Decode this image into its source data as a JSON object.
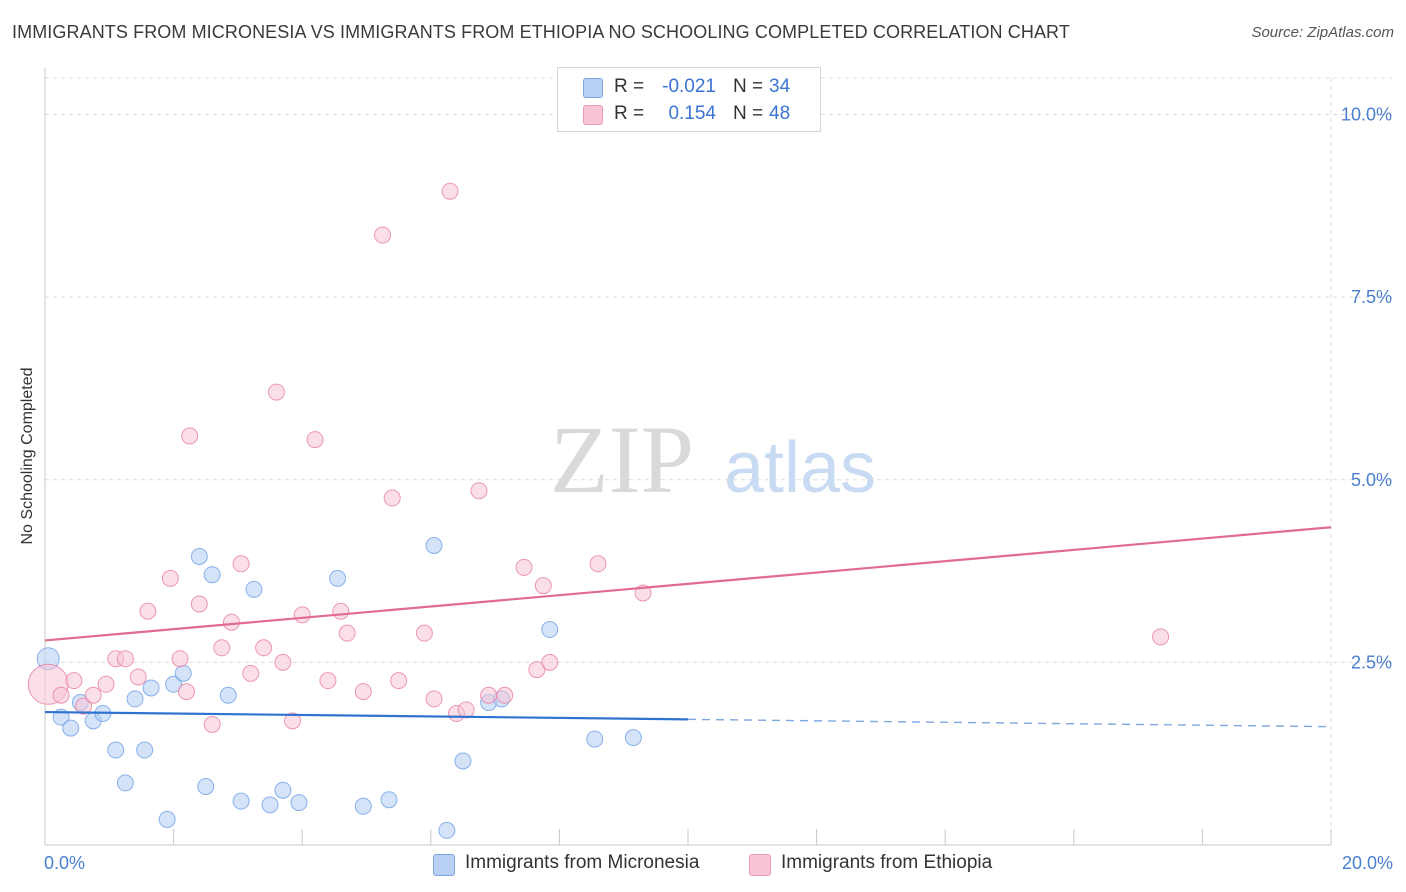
{
  "title": "IMMIGRANTS FROM MICRONESIA VS IMMIGRANTS FROM ETHIOPIA NO SCHOOLING COMPLETED CORRELATION CHART",
  "source": "Source: ZipAtlas.com",
  "watermark": {
    "zip": "ZIP",
    "atlas": "atlas"
  },
  "legend": {
    "rows": [
      {
        "r_label": "R =",
        "r_value": "-0.021",
        "n_label": "N =",
        "n_value": "34",
        "color": "#b8d0f4"
      },
      {
        "r_label": "R =",
        "r_value": "0.154",
        "n_label": "N =",
        "n_value": "48",
        "color": "#f8c5d6"
      }
    ]
  },
  "bottom_legend": [
    {
      "label": "Immigrants from Micronesia",
      "color": "#b8d0f4"
    },
    {
      "label": "Immigrants from Ethiopia",
      "color": "#f8c5d6"
    }
  ],
  "chart_data": {
    "type": "scatter",
    "title": "IMMIGRANTS FROM MICRONESIA VS IMMIGRANTS FROM ETHIOPIA NO SCHOOLING COMPLETED CORRELATION CHART",
    "xlabel": "",
    "ylabel": "No Schooling Completed",
    "xlim": [
      0,
      20
    ],
    "ylim": [
      0,
      10.5
    ],
    "x_tick_labels": [
      "0.0%",
      "20.0%"
    ],
    "y_ticks": [
      2.5,
      5.0,
      7.5,
      10.0
    ],
    "y_tick_labels": [
      "2.5%",
      "5.0%",
      "7.5%",
      "10.0%"
    ],
    "grid": true,
    "series": [
      {
        "name": "Immigrants from Micronesia",
        "color": "#6fa0e6",
        "fill": "#b8d0f4",
        "points": [
          [
            0.05,
            2.55
          ],
          [
            0.25,
            1.75
          ],
          [
            0.4,
            1.6
          ],
          [
            0.55,
            1.95
          ],
          [
            0.75,
            1.7
          ],
          [
            0.9,
            1.8
          ],
          [
            1.1,
            1.3
          ],
          [
            1.25,
            0.85
          ],
          [
            1.4,
            2.0
          ],
          [
            1.55,
            1.3
          ],
          [
            1.65,
            2.15
          ],
          [
            1.9,
            0.35
          ],
          [
            2.0,
            2.2
          ],
          [
            2.15,
            2.35
          ],
          [
            2.4,
            3.95
          ],
          [
            2.5,
            0.8
          ],
          [
            2.6,
            3.7
          ],
          [
            2.85,
            2.05
          ],
          [
            3.05,
            0.6
          ],
          [
            3.25,
            3.5
          ],
          [
            3.5,
            0.55
          ],
          [
            3.7,
            0.75
          ],
          [
            3.95,
            0.58
          ],
          [
            4.55,
            3.65
          ],
          [
            4.95,
            0.53
          ],
          [
            5.35,
            0.62
          ],
          [
            6.05,
            4.1
          ],
          [
            6.25,
            0.2
          ],
          [
            6.5,
            1.15
          ],
          [
            6.9,
            1.95
          ],
          [
            7.1,
            2.0
          ],
          [
            7.85,
            2.95
          ],
          [
            8.55,
            1.45
          ],
          [
            9.15,
            1.47
          ]
        ],
        "trend": {
          "x": [
            0,
            10
          ],
          "y": [
            1.82,
            1.72
          ],
          "dashed_to": [
            20,
            1.62
          ]
        }
      },
      {
        "name": "Immigrants from Ethiopia",
        "color": "#e87fa2",
        "fill": "#f8c5d6",
        "points": [
          [
            0.05,
            2.2
          ],
          [
            0.25,
            2.05
          ],
          [
            0.45,
            2.25
          ],
          [
            0.6,
            1.9
          ],
          [
            0.75,
            2.05
          ],
          [
            0.95,
            2.2
          ],
          [
            1.1,
            2.55
          ],
          [
            1.25,
            2.55
          ],
          [
            1.45,
            2.3
          ],
          [
            1.6,
            3.2
          ],
          [
            1.95,
            3.65
          ],
          [
            2.1,
            2.55
          ],
          [
            2.2,
            2.1
          ],
          [
            2.25,
            5.6
          ],
          [
            2.4,
            3.3
          ],
          [
            2.6,
            1.65
          ],
          [
            2.75,
            2.7
          ],
          [
            2.9,
            3.05
          ],
          [
            3.05,
            3.85
          ],
          [
            3.2,
            2.35
          ],
          [
            3.4,
            2.7
          ],
          [
            3.6,
            6.2
          ],
          [
            3.7,
            2.5
          ],
          [
            3.85,
            1.7
          ],
          [
            4.0,
            3.15
          ],
          [
            4.2,
            5.55
          ],
          [
            4.4,
            2.25
          ],
          [
            4.6,
            3.2
          ],
          [
            4.7,
            2.9
          ],
          [
            4.95,
            2.1
          ],
          [
            5.25,
            8.35
          ],
          [
            5.4,
            4.75
          ],
          [
            5.5,
            2.25
          ],
          [
            5.9,
            2.9
          ],
          [
            6.05,
            2.0
          ],
          [
            6.3,
            8.95
          ],
          [
            6.4,
            1.8
          ],
          [
            6.55,
            1.85
          ],
          [
            6.75,
            4.85
          ],
          [
            6.9,
            2.05
          ],
          [
            7.15,
            2.05
          ],
          [
            7.45,
            3.8
          ],
          [
            7.65,
            2.4
          ],
          [
            7.75,
            3.55
          ],
          [
            7.85,
            2.5
          ],
          [
            8.6,
            3.85
          ],
          [
            9.3,
            3.45
          ],
          [
            17.35,
            2.85
          ]
        ],
        "trend": {
          "x": [
            0,
            20
          ],
          "y": [
            2.8,
            4.35
          ]
        }
      }
    ]
  }
}
